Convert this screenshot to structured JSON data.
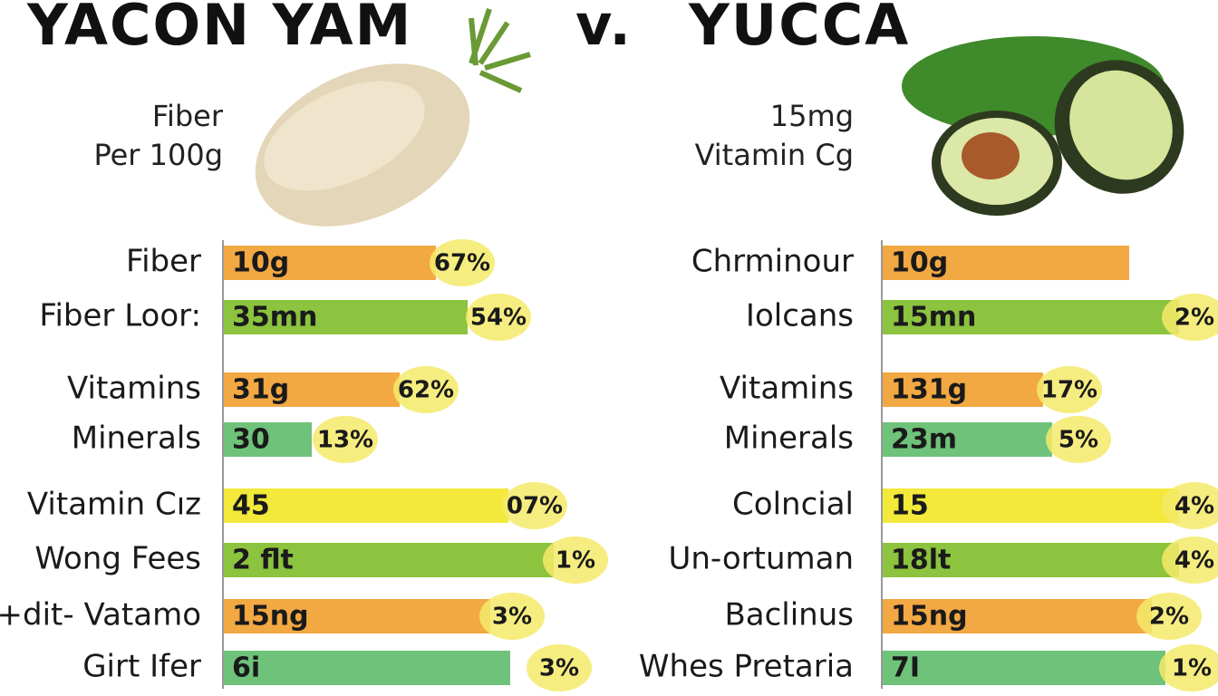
{
  "title": {
    "left": "YACON YAM",
    "mid": "v.",
    "right": "YUCCA"
  },
  "left": {
    "caption": [
      "Fiber",
      "Per 100g"
    ],
    "rows": [
      {
        "label": "Fiber",
        "amount": "10g",
        "percent": "67%"
      },
      {
        "label": "Fiber Loor:",
        "amount": "35mn",
        "percent": "54%"
      },
      {
        "label": "Vitamins",
        "amount": "31g",
        "percent": "62%"
      },
      {
        "label": "Minerals",
        "amount": "30",
        "percent": "13%"
      },
      {
        "label": "Vitamin Cız",
        "amount": "45",
        "percent": "07%"
      },
      {
        "label": "Wong Fees",
        "amount": "2 flt",
        "percent": "1%"
      },
      {
        "label": "+dit- Vatamo",
        "amount": "15ng",
        "percent": "3%"
      },
      {
        "label": "Girt Ifer",
        "amount": "6i",
        "percent": "3%"
      }
    ]
  },
  "right": {
    "caption": [
      "15mg",
      "Vitamin Cg"
    ],
    "rows": [
      {
        "label": "Chrminour",
        "amount": "10g"
      },
      {
        "label": "Iolcans",
        "amount": "15mn",
        "percent": "2%"
      },
      {
        "label": "Vitamins",
        "amount": "131g",
        "percent": "17%"
      },
      {
        "label": "Minerals",
        "amount": "23m",
        "percent": "5%"
      },
      {
        "label": "Colncial",
        "amount": "15",
        "percent": "4%"
      },
      {
        "label": "Un-ortuman",
        "amount": "18lt",
        "percent": "4%"
      },
      {
        "label": "Baclinus",
        "amount": "15ng",
        "percent": "2%"
      },
      {
        "label": "Whes Pretaria",
        "amount": "7I",
        "percent": "1%"
      }
    ]
  }
}
